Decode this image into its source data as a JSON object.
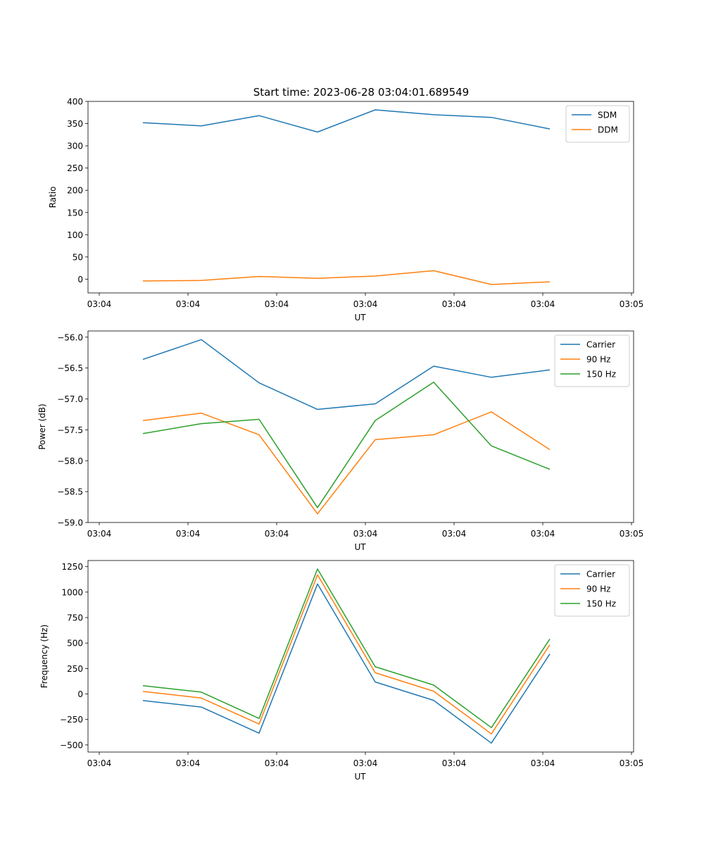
{
  "figure": {
    "title": "Start time: 2023-06-28 03:04:01.689549"
  },
  "chart_data": [
    {
      "type": "line",
      "title": "Start time: 2023-06-28 03:04:01.689549",
      "xlabel": "UT",
      "ylabel": "Ratio",
      "x_tick_labels": [
        "03:04",
        "03:04",
        "03:04",
        "03:04",
        "03:04",
        "03:04",
        "03:05"
      ],
      "ylim": [
        -31,
        400
      ],
      "y_ticks": [
        0,
        50,
        100,
        150,
        200,
        250,
        300,
        350,
        400
      ],
      "legend_position": "top-right",
      "series": [
        {
          "name": "SDM",
          "color": "#1f77b4",
          "values": [
            352,
            345,
            368,
            331,
            381,
            370,
            364,
            338
          ]
        },
        {
          "name": "DDM",
          "color": "#ff7f0e",
          "values": [
            -4,
            -3,
            6,
            2,
            7,
            19,
            -12,
            -6
          ]
        }
      ]
    },
    {
      "type": "line",
      "xlabel": "UT",
      "ylabel": "Power (dB)",
      "x_tick_labels": [
        "03:04",
        "03:04",
        "03:04",
        "03:04",
        "03:04",
        "03:04",
        "03:05"
      ],
      "ylim": [
        -59.0,
        -55.9
      ],
      "y_ticks": [
        -59.0,
        -58.5,
        -58.0,
        -57.5,
        -57.0,
        -56.5,
        -56.0
      ],
      "legend_position": "top-right",
      "series": [
        {
          "name": "Carrier",
          "color": "#1f77b4",
          "values": [
            -56.36,
            -56.04,
            -56.74,
            -57.17,
            -57.08,
            -56.47,
            -56.65,
            -56.53
          ]
        },
        {
          "name": "90 Hz",
          "color": "#ff7f0e",
          "values": [
            -57.35,
            -57.23,
            -57.58,
            -58.86,
            -57.66,
            -57.58,
            -57.21,
            -57.82
          ]
        },
        {
          "name": "150 Hz",
          "color": "#2ca02c",
          "values": [
            -57.56,
            -57.4,
            -57.33,
            -58.76,
            -57.35,
            -56.73,
            -57.76,
            -58.14
          ]
        }
      ]
    },
    {
      "type": "line",
      "xlabel": "UT",
      "ylabel": "Frequency (Hz)",
      "x_tick_labels": [
        "03:04",
        "03:04",
        "03:04",
        "03:04",
        "03:04",
        "03:04",
        "03:05"
      ],
      "ylim": [
        -570,
        1310
      ],
      "y_ticks": [
        -500,
        -250,
        0,
        250,
        500,
        750,
        1000,
        1250
      ],
      "legend_position": "top-right",
      "series": [
        {
          "name": "Carrier",
          "color": "#1f77b4",
          "values": [
            -65,
            -128,
            -385,
            1080,
            118,
            -63,
            -482,
            393
          ]
        },
        {
          "name": "90 Hz",
          "color": "#ff7f0e",
          "values": [
            25,
            -40,
            -295,
            1170,
            208,
            27,
            -392,
            483
          ]
        },
        {
          "name": "150 Hz",
          "color": "#2ca02c",
          "values": [
            82,
            18,
            -240,
            1227,
            267,
            87,
            -330,
            540
          ]
        }
      ]
    }
  ]
}
